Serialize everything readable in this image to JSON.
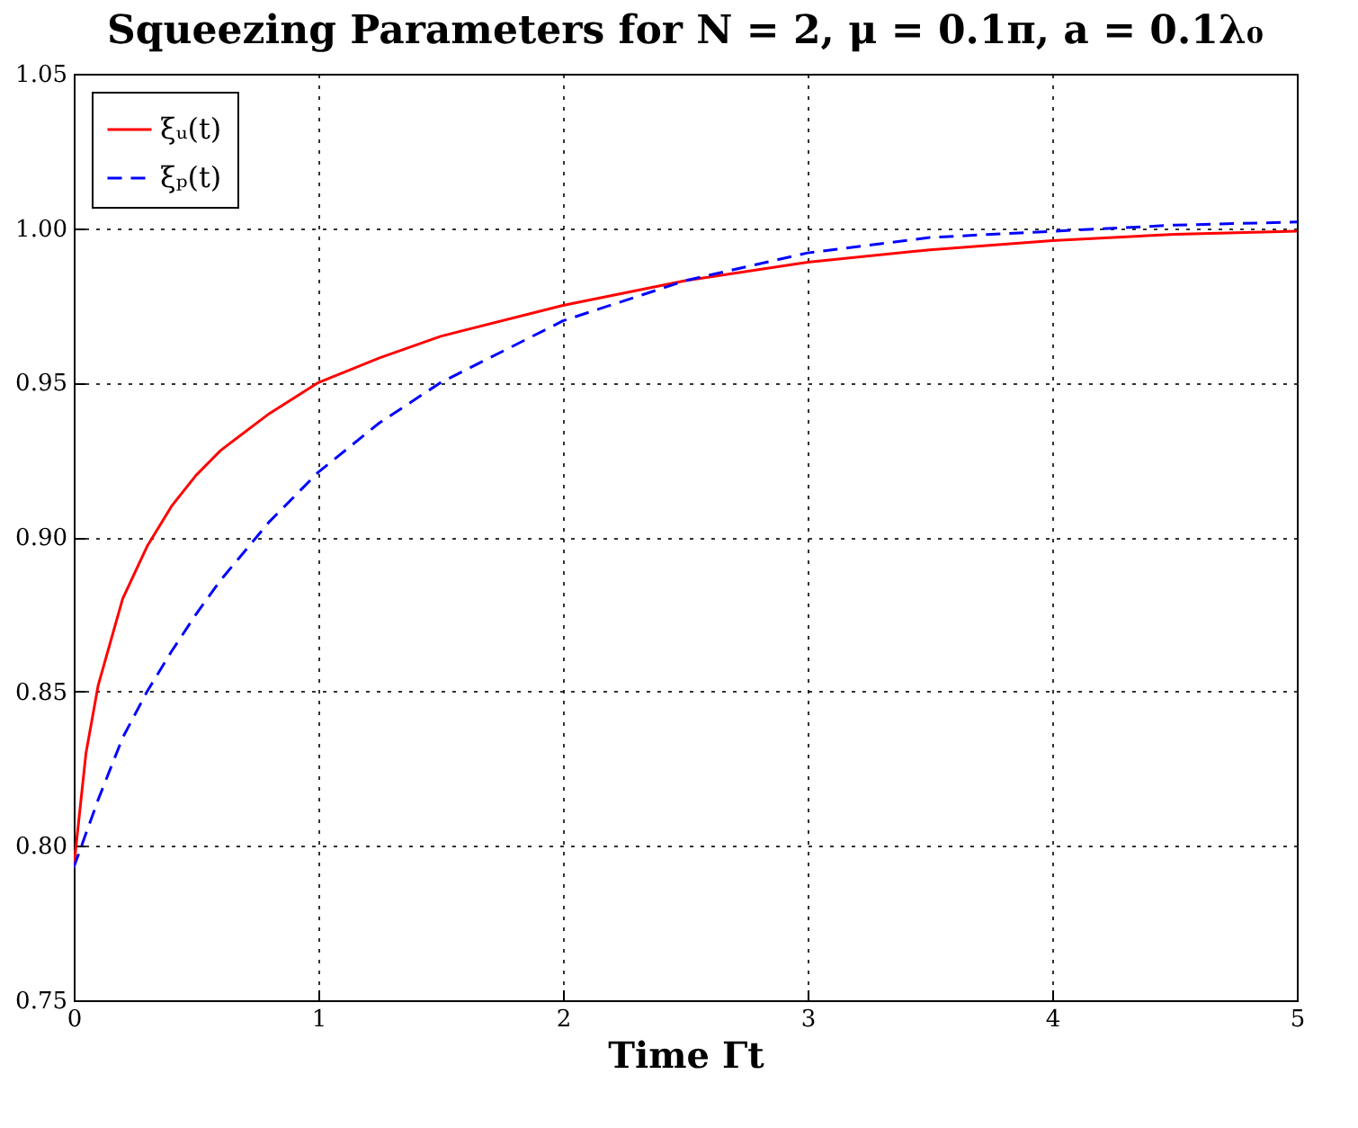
{
  "chart_data": {
    "type": "line",
    "title": "Squeezing Parameters for N = 2, μ = 0.1π, a = 0.1λ₀",
    "xlabel": "Time Γt",
    "x": [
      0,
      0.05,
      0.1,
      0.2,
      0.3,
      0.4,
      0.5,
      0.6,
      0.8,
      1.0,
      1.25,
      1.5,
      2,
      2.5,
      3,
      3.5,
      4,
      4.5,
      5
    ],
    "series": [
      {
        "name": "ξᵤ(t)",
        "color": "#ff0000",
        "line_style": "solid",
        "values": [
          0.793,
          0.83,
          0.852,
          0.88,
          0.897,
          0.91,
          0.92,
          0.928,
          0.94,
          0.95,
          0.958,
          0.965,
          0.975,
          0.983,
          0.989,
          0.993,
          0.996,
          0.998,
          0.999
        ]
      },
      {
        "name": "ξₚ(t)",
        "color": "#0000ff",
        "line_style": "dashed",
        "values": [
          0.793,
          0.804,
          0.815,
          0.835,
          0.85,
          0.863,
          0.875,
          0.886,
          0.905,
          0.921,
          0.937,
          0.95,
          0.97,
          0.983,
          0.992,
          0.997,
          0.999,
          1.001,
          1.002
        ]
      }
    ],
    "xlim": [
      0,
      5
    ],
    "xticks": [
      0,
      1,
      2,
      3,
      4,
      5
    ],
    "ylim": [
      0.75,
      1.05
    ],
    "yticks": [
      {
        "value": 0.75,
        "label": "0.75"
      },
      {
        "value": 0.8,
        "label": "0.80"
      },
      {
        "value": 0.85,
        "label": "0.85"
      },
      {
        "value": 0.9,
        "label": "0.90"
      },
      {
        "value": 0.95,
        "label": "0.95"
      },
      {
        "value": 1.0,
        "label": "1.00"
      },
      {
        "value": 1.05,
        "label": "1.05"
      }
    ],
    "grid": true,
    "legend": "top left"
  }
}
